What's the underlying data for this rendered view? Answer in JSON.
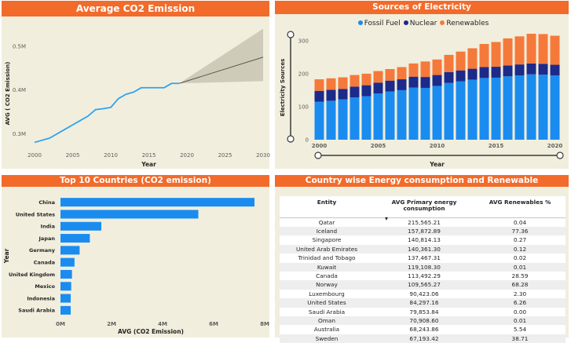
{
  "colors": {
    "title_bar": "#f26b2a",
    "panel_bg": "#f1eedd",
    "line": "#2fa3ee",
    "fossil": "#1a8cf0",
    "nuclear": "#1c2a8a",
    "renewables": "#f5793a",
    "hbar": "#1a8cf0",
    "forecast_band": "#c8c4b2"
  },
  "co2_panel": {
    "title": "Average CO2 Emission",
    "chart_data": {
      "type": "line",
      "title": "Average CO2 Emission",
      "xlabel": "Year",
      "ylabel": "AVG ( CO2 Emission)",
      "x": [
        2000,
        2002,
        2004,
        2005,
        2006,
        2007,
        2008,
        2009,
        2010,
        2011,
        2012,
        2013,
        2014,
        2015,
        2016,
        2017,
        2018,
        2019
      ],
      "y": [
        0.28,
        0.29,
        0.31,
        0.32,
        0.33,
        0.34,
        0.355,
        0.357,
        0.36,
        0.38,
        0.39,
        0.395,
        0.405,
        0.405,
        0.405,
        0.405,
        0.415,
        0.415
      ],
      "forecast": {
        "x": [
          2019,
          2030
        ],
        "y": [
          0.415,
          0.475
        ],
        "upper": [
          0.415,
          0.54
        ],
        "lower": [
          0.415,
          0.42
        ]
      },
      "xlim": [
        2000,
        2030
      ],
      "ylim": [
        0.27,
        0.55
      ],
      "xticks": [
        "2000",
        "2005",
        "2010",
        "2015",
        "2020",
        "2025",
        "2030"
      ],
      "yticks": [
        {
          "v": 0.3,
          "label": "0.3M"
        },
        {
          "v": 0.4,
          "label": "0.4M"
        },
        {
          "v": 0.5,
          "label": "0.5M"
        }
      ],
      "grid": false
    }
  },
  "electricity_panel": {
    "title": "Sources of Electricity",
    "legend": [
      {
        "label": "Fossil Fuel",
        "color": "#1a8cf0"
      },
      {
        "label": "Nuclear",
        "color": "#1c2a8a"
      },
      {
        "label": "Renewables",
        "color": "#f5793a"
      }
    ],
    "chart_data": {
      "type": "bar",
      "title": "Sources of Electricity",
      "xlabel": "Year",
      "ylabel": "Electricity Sources",
      "categories": [
        "2000",
        "2001",
        "2002",
        "2003",
        "2004",
        "2005",
        "2006",
        "2007",
        "2008",
        "2009",
        "2010",
        "2011",
        "2012",
        "2013",
        "2014",
        "2015",
        "2016",
        "2017",
        "2018",
        "2019",
        "2020"
      ],
      "series": [
        {
          "name": "Fossil Fuel",
          "values": [
            115,
            118,
            122,
            128,
            132,
            140,
            146,
            150,
            158,
            157,
            163,
            172,
            177,
            182,
            187,
            188,
            192,
            195,
            198,
            197,
            195
          ]
        },
        {
          "name": "Nuclear",
          "values": [
            33,
            33,
            32,
            33,
            33,
            33,
            33,
            33,
            33,
            33,
            33,
            33,
            33,
            33,
            33,
            33,
            33,
            33,
            33,
            33,
            32
          ]
        },
        {
          "name": "Renewables",
          "values": [
            35,
            35,
            35,
            35,
            35,
            35,
            35,
            37,
            40,
            47,
            47,
            52,
            57,
            62,
            70,
            75,
            82,
            85,
            90,
            90,
            88
          ]
        }
      ],
      "ylim": [
        0,
        340
      ],
      "yticks": [
        "0",
        "100",
        "200",
        "300"
      ],
      "xticks": [
        "2000",
        "2005",
        "2010",
        "2015",
        "2020"
      ],
      "stacked": true,
      "legend_position": "top-center"
    }
  },
  "top10_panel": {
    "title": "Top 10 Countries (CO2 emission)",
    "chart_data": {
      "type": "bar",
      "orientation": "horizontal",
      "title": "Top 10 Countries (CO2 emission)",
      "xlabel": "AVG (CO2 Emission)",
      "ylabel": "Year",
      "categories": [
        "China",
        "United States",
        "India",
        "Japan",
        "Germany",
        "Canada",
        "United Kingdom",
        "Mexico",
        "Indonesia",
        "Saudi Arabia"
      ],
      "values": [
        7.6,
        5.4,
        1.6,
        1.15,
        0.75,
        0.55,
        0.45,
        0.42,
        0.4,
        0.4
      ],
      "xlim": [
        0,
        8
      ],
      "xticks": [
        "0M",
        "2M",
        "4M",
        "6M",
        "8M"
      ]
    }
  },
  "table_panel": {
    "title": "Country wise Energy consumption and Renewable",
    "columns": [
      "Entity",
      "AVG Primary energy consumption",
      "AVG Renewables %"
    ],
    "sort_indicator": "▾",
    "rows": [
      [
        "Qatar",
        "215,565.21",
        "0.04"
      ],
      [
        "Iceland",
        "157,872.89",
        "77.36"
      ],
      [
        "Singapore",
        "140,814.13",
        "0.27"
      ],
      [
        "United Arab Emirates",
        "140,361.30",
        "0.12"
      ],
      [
        "Trinidad and Tobago",
        "137,467.31",
        "0.02"
      ],
      [
        "Kuwait",
        "119,108.30",
        "0.01"
      ],
      [
        "Canada",
        "113,492.29",
        "28.59"
      ],
      [
        "Norway",
        "109,565.27",
        "68.28"
      ],
      [
        "Luxembourg",
        "90,423.06",
        "2.30"
      ],
      [
        "United States",
        "84,297.16",
        "6.26"
      ],
      [
        "Saudi Arabia",
        "79,853.84",
        "0.00"
      ],
      [
        "Oman",
        "70,908.60",
        "0.01"
      ],
      [
        "Australia",
        "68,243.86",
        "5.54"
      ],
      [
        "Sweden",
        "67,193.42",
        "38.71"
      ]
    ]
  }
}
